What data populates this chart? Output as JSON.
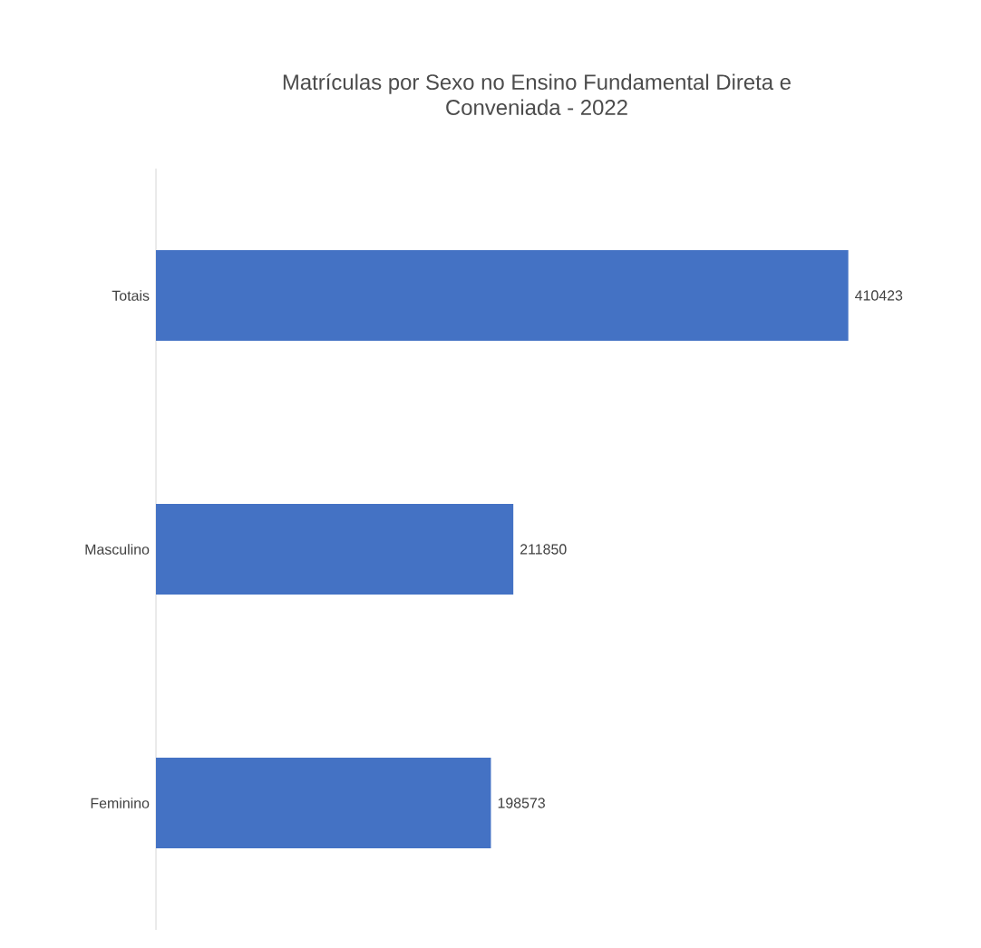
{
  "chart_data": {
    "type": "bar",
    "orientation": "horizontal",
    "title": "Matrículas por Sexo no Ensino Fundamental Direta e Conveniada - 2022",
    "categories": [
      "Totais",
      "Masculino",
      "Feminino"
    ],
    "values": [
      410423,
      211850,
      198573
    ],
    "color": "#4472c4",
    "data_labels": true,
    "tick_labels": "y"
  }
}
